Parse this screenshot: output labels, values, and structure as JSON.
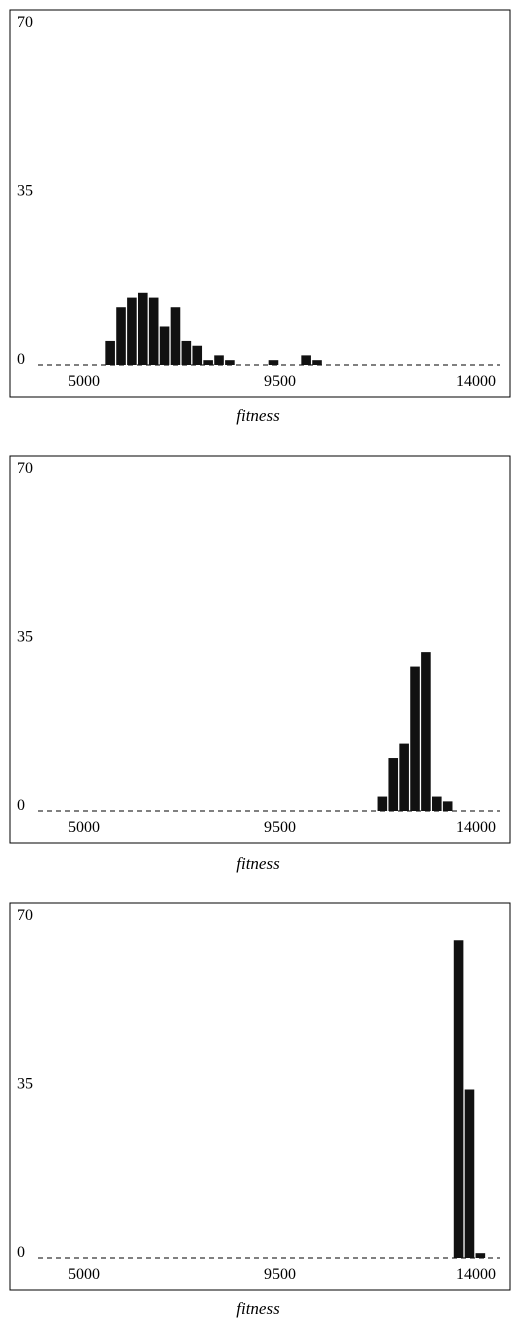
{
  "chart_data": [
    {
      "type": "bar",
      "xlabel": "fitness",
      "xlim": [
        5000,
        14000
      ],
      "ylim": [
        0,
        70
      ],
      "x_ticks": [
        "5000",
        "9500",
        "14000"
      ],
      "y_ticks": [
        "0",
        "35",
        "70"
      ],
      "grid": false,
      "bar_color": "#111111",
      "x": [
        5600,
        5850,
        6100,
        6350,
        6600,
        6850,
        7100,
        7350,
        7600,
        7850,
        8100,
        8350,
        8600,
        8850,
        9100,
        9350,
        9600,
        9850,
        10100,
        10350
      ],
      "values": [
        5,
        12,
        14,
        15,
        14,
        8,
        12,
        5,
        4,
        1,
        2,
        1,
        0,
        0,
        0,
        1,
        0,
        0,
        2,
        1
      ]
    },
    {
      "type": "bar",
      "xlabel": "fitness",
      "xlim": [
        5000,
        14000
      ],
      "ylim": [
        0,
        70
      ],
      "x_ticks": [
        "5000",
        "9500",
        "14000"
      ],
      "y_ticks": [
        "0",
        "35",
        "70"
      ],
      "grid": false,
      "bar_color": "#111111",
      "x": [
        11850,
        12100,
        12350,
        12600,
        12850,
        13100,
        13350
      ],
      "values": [
        3,
        11,
        14,
        30,
        33,
        3,
        2
      ]
    },
    {
      "type": "bar",
      "xlabel": "fitness",
      "xlim": [
        5000,
        14000
      ],
      "ylim": [
        0,
        70
      ],
      "x_ticks": [
        "5000",
        "9500",
        "14000"
      ],
      "y_ticks": [
        "0",
        "35",
        "70"
      ],
      "grid": false,
      "bar_color": "#111111",
      "x": [
        13600,
        13850,
        14100
      ],
      "values": [
        66,
        35,
        1
      ]
    }
  ]
}
